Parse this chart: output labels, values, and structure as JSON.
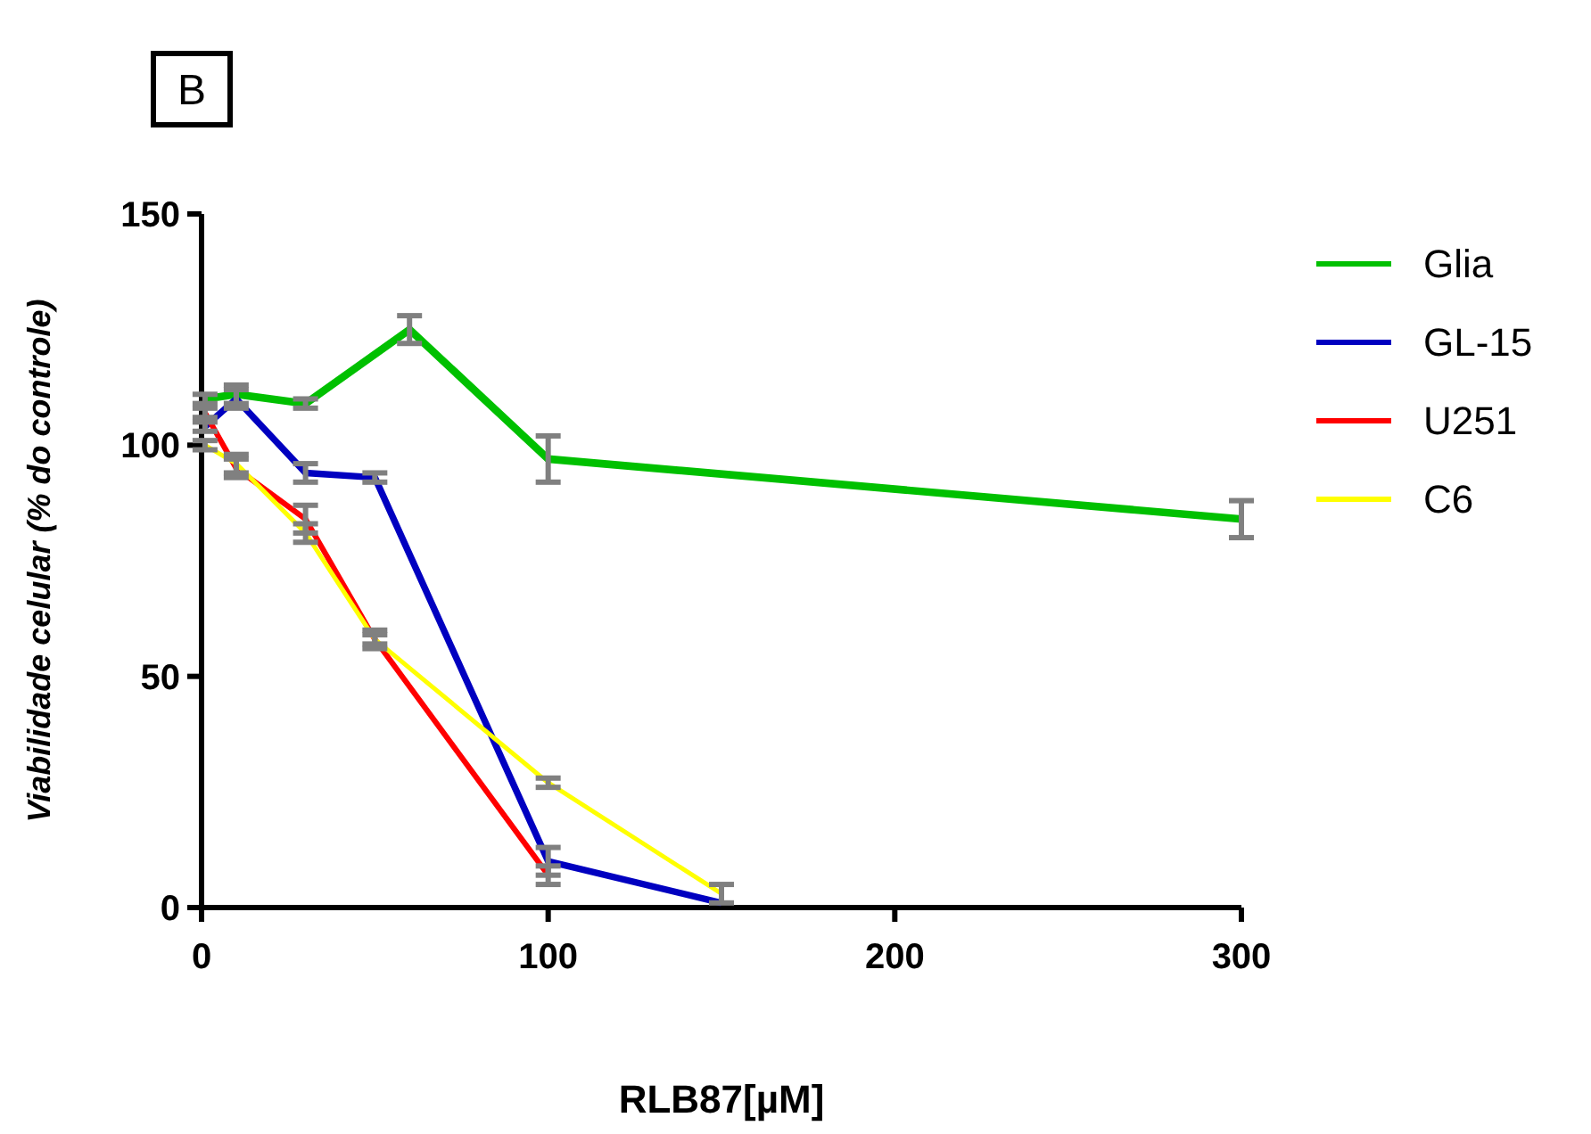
{
  "chart_data": {
    "type": "line",
    "xlabel": "RLB87[µM]",
    "ylabel": "Viabilidade celular (% do controle)",
    "annotations": [
      "B"
    ],
    "xlim": [
      0,
      300
    ],
    "xticks": [
      0,
      100,
      200,
      300
    ],
    "ylim": [
      0,
      150
    ],
    "yticks": [
      0,
      50,
      100,
      150
    ],
    "legend": "right",
    "marker": "none",
    "grid": false,
    "series": [
      {
        "name": "Glia",
        "color": "#00c000",
        "x": [
          1,
          10,
          30,
          60,
          100,
          300
        ],
        "values": [
          110,
          111,
          109,
          125,
          97,
          84
        ],
        "errors": [
          1,
          2,
          1,
          3,
          5,
          4
        ]
      },
      {
        "name": "GL-15",
        "color": "#0000c0",
        "x": [
          1,
          10,
          30,
          50,
          100,
          150
        ],
        "values": [
          104,
          110,
          94,
          93,
          10,
          1
        ],
        "errors": [
          1,
          2,
          2,
          1,
          3,
          null
        ]
      },
      {
        "name": "U251",
        "color": "#ff0000",
        "x": [
          1,
          10,
          30,
          50,
          100
        ],
        "values": [
          107,
          95,
          84,
          58,
          7
        ],
        "errors": [
          1,
          2,
          3,
          2,
          2
        ]
      },
      {
        "name": "C6",
        "color": "#ffff00",
        "x": [
          1,
          10,
          30,
          50,
          100,
          150
        ],
        "values": [
          100,
          96,
          81,
          58,
          27,
          3
        ],
        "errors": [
          1,
          2,
          2,
          1,
          1,
          2
        ]
      }
    ]
  }
}
